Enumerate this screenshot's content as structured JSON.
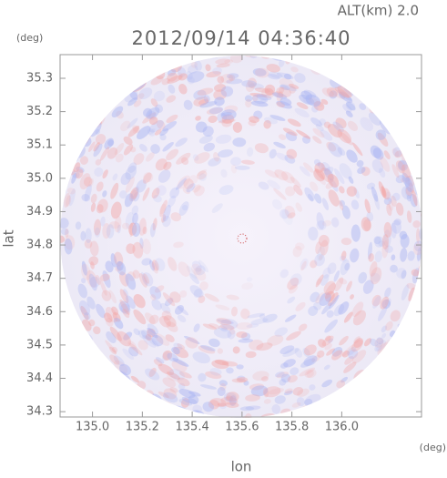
{
  "chart_data": {
    "type": "field",
    "title": "2012/09/14 04:36:40",
    "annotation": "ALT(km) 2.0",
    "x_label": "lon",
    "y_label": "lat",
    "x_unit": "(deg)",
    "y_unit": "(deg)",
    "xlim": [
      134.87,
      136.32
    ],
    "xticks": [
      {
        "value": 135,
        "label": "135.0"
      },
      135.2,
      135.4,
      135.6,
      135.8,
      {
        "value": 136,
        "label": "136.0"
      }
    ],
    "ylim": [
      34.284,
      35.371
    ],
    "yticks": [
      34.3,
      34.4,
      34.5,
      34.6,
      34.7,
      34.8,
      34.9,
      {
        "value": 35,
        "label": "35.0"
      },
      35.1,
      35.2,
      35.3
    ]
  }
}
